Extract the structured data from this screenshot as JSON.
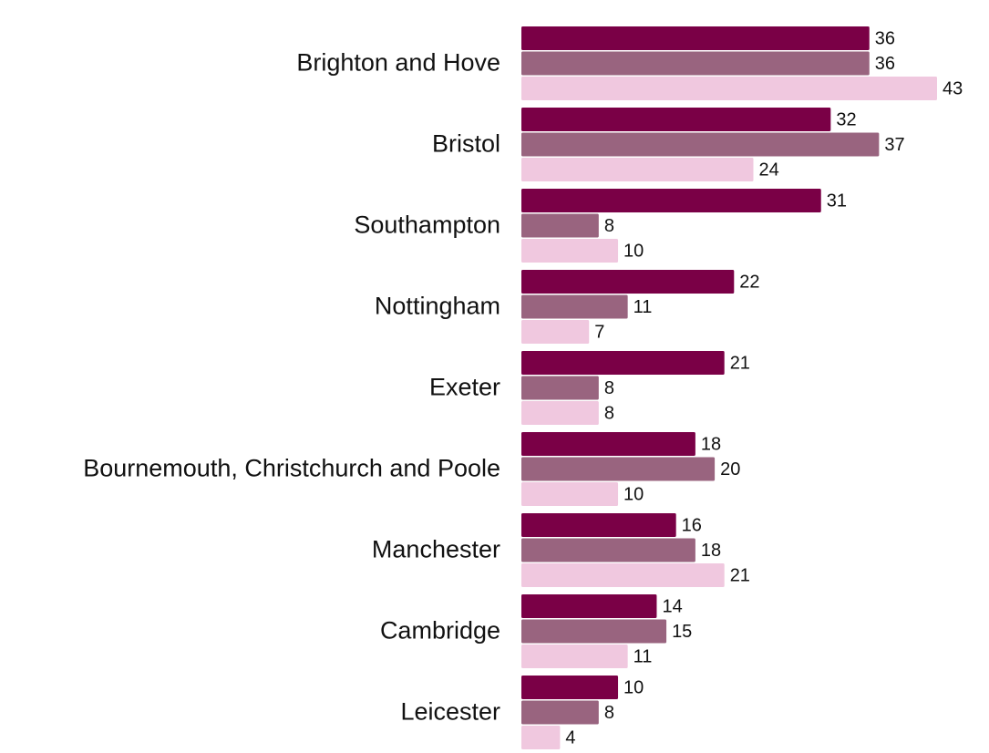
{
  "chart_data": {
    "type": "bar",
    "orientation": "horizontal",
    "categories": [
      "Brighton and Hove",
      "Bristol",
      "Southampton",
      "Nottingham",
      "Exeter",
      "Bournemouth, Christchurch and Poole",
      "Manchester",
      "Cambridge",
      "Leicester"
    ],
    "series": [
      {
        "values": [
          36,
          32,
          31,
          22,
          21,
          18,
          16,
          14,
          10
        ],
        "color": "#7a0046"
      },
      {
        "values": [
          36,
          37,
          8,
          11,
          8,
          20,
          18,
          15,
          8
        ],
        "color": "#99647f"
      },
      {
        "values": [
          43,
          24,
          10,
          7,
          8,
          10,
          21,
          11,
          4
        ],
        "color": "#f0c8df"
      }
    ],
    "title": "",
    "xlabel": "",
    "ylabel": "",
    "xlim": [
      0,
      43
    ],
    "grid": false,
    "legend": "none",
    "data_labels": true
  }
}
